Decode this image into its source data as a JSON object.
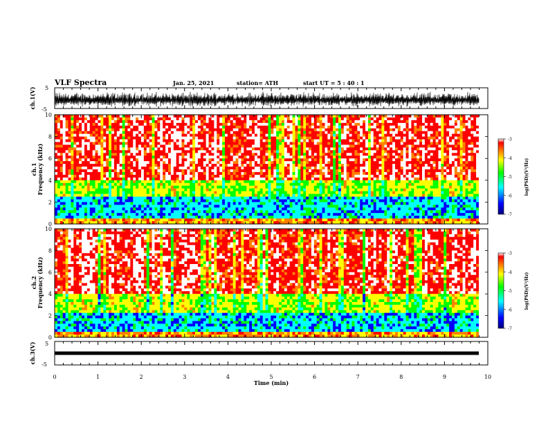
{
  "header": {
    "title": "VLF Spectra",
    "date": "Jan. 25, 2021",
    "station": "station= ATH",
    "start": "start UT = 5 : 40 : 1"
  },
  "chart_data": [
    {
      "type": "line",
      "title": "",
      "ylabel": "ch.1(V)",
      "ylim": [
        -5,
        5
      ],
      "yticks": [
        "5",
        "-5"
      ],
      "xlim": [
        0,
        10
      ],
      "description_free": true
    },
    {
      "type": "heatmap",
      "ylabel": "Frequency (kHz)",
      "ylabel_prefix": "ch.1",
      "ylim": [
        0,
        10
      ],
      "yticks": [
        "0",
        "2",
        "4",
        "6",
        "8",
        "10"
      ],
      "xlim": [
        0,
        10
      ],
      "colorbar": {
        "label": "log(PSD)(V²/Hz)",
        "range": [
          -7,
          -3
        ],
        "ticks": [
          "-3",
          "-4",
          "-5",
          "-6",
          "-7"
        ]
      }
    },
    {
      "type": "heatmap",
      "ylabel": "Frequency (kHz)",
      "ylabel_prefix": "ch.2",
      "ylim": [
        0,
        10
      ],
      "yticks": [
        "0",
        "2",
        "4",
        "6",
        "8",
        "10"
      ],
      "xlim": [
        0,
        10
      ],
      "colorbar": {
        "label": "log(PSD)(V²/Hz)",
        "range": [
          -7,
          -3
        ],
        "ticks": [
          "-3",
          "-4",
          "-5",
          "-6",
          "-7"
        ]
      }
    },
    {
      "type": "line",
      "ylabel": "ch.3(V)",
      "ylim": [
        -5,
        5
      ],
      "yticks": [
        "5",
        "-5"
      ],
      "xlim": [
        0,
        10
      ],
      "constant_value": 0
    }
  ],
  "xaxis": {
    "label": "Time (min)",
    "ticks": [
      "0",
      "1",
      "2",
      "3",
      "4",
      "5",
      "6",
      "7",
      "8",
      "9",
      "10"
    ]
  },
  "colors": {
    "spectrogram_scale": [
      "#00007f",
      "#0000ff",
      "#00ffff",
      "#00ff00",
      "#ffff00",
      "#ff8000",
      "#ff0000",
      "#ffffff"
    ]
  }
}
